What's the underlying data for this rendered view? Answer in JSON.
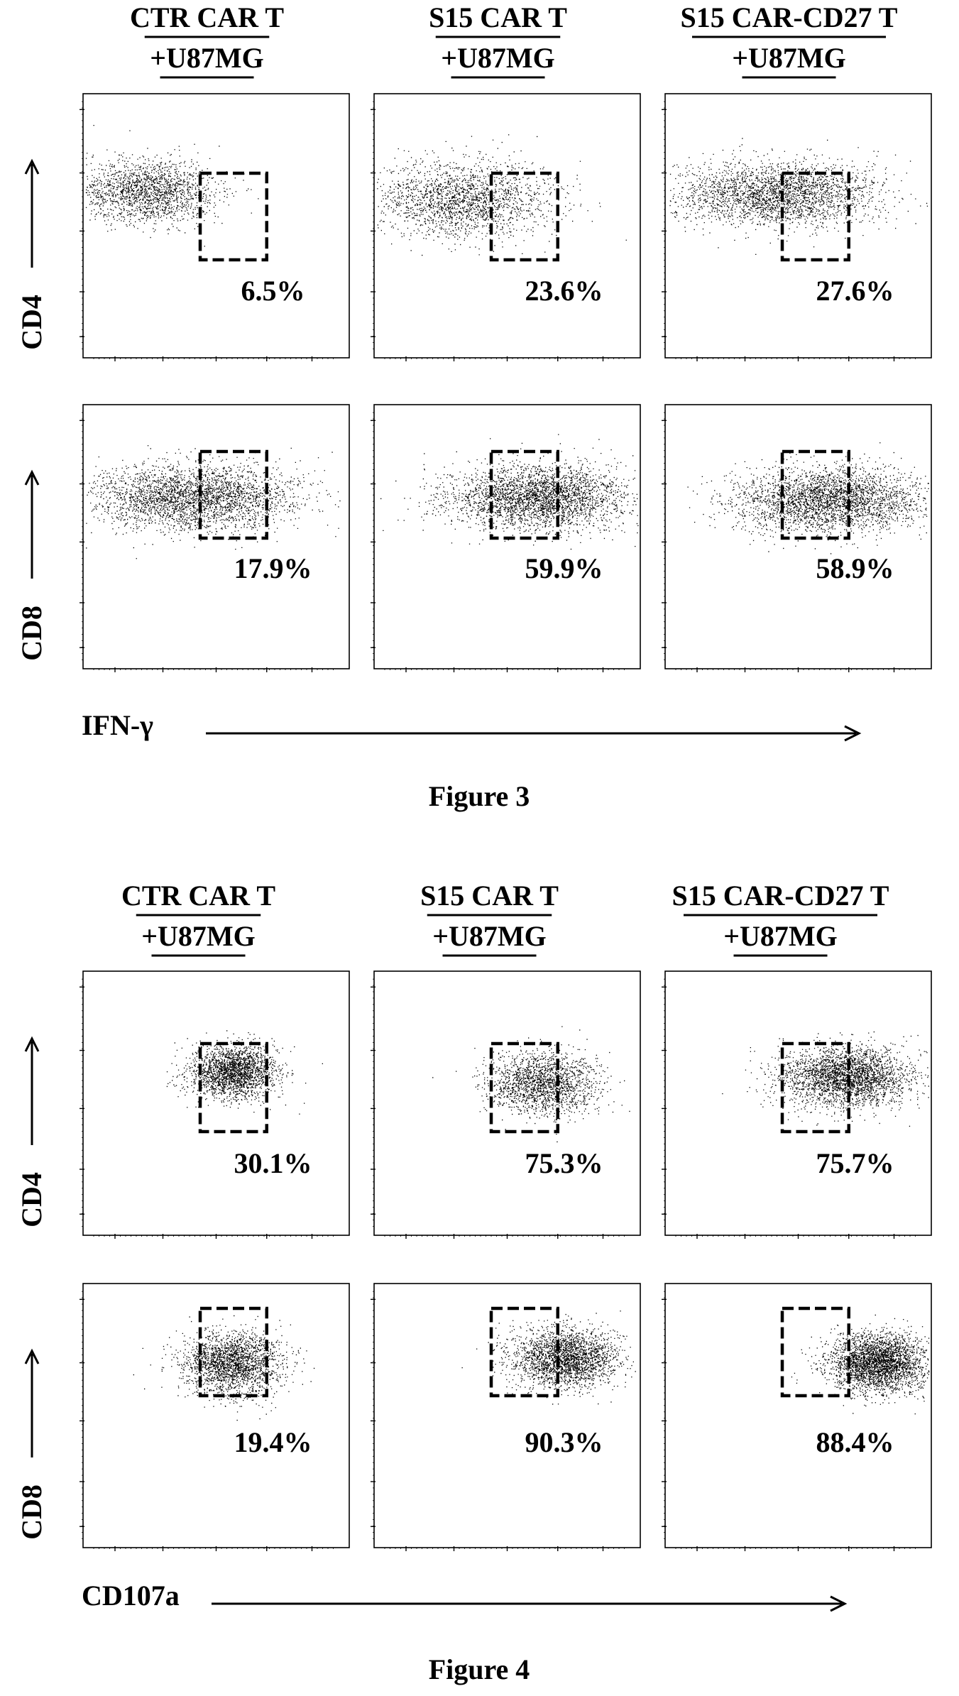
{
  "figures": [
    {
      "caption": "Figure 3",
      "x_axis_label": "IFN-γ",
      "columns": [
        {
          "line1": "CTR CAR T",
          "line2": "+U87MG"
        },
        {
          "line1": "S15 CAR T",
          "line2": "+U87MG"
        },
        {
          "line1": "S15 CAR-CD27 T",
          "line2": "+U87MG"
        }
      ],
      "rows": [
        "CD4",
        "CD8"
      ]
    },
    {
      "caption": "Figure 4",
      "x_axis_label": "CD107a",
      "columns": [
        {
          "line1": "CTR CAR T",
          "line2": "+U87MG"
        },
        {
          "line1": "S15 CAR T",
          "line2": "+U87MG"
        },
        {
          "line1": "S15 CAR-CD27 T",
          "line2": "+U87MG"
        }
      ],
      "rows": [
        "CD4",
        "CD8"
      ]
    }
  ],
  "chart_data": [
    {
      "type": "scatter",
      "title": "Figure 3",
      "xlabel": "IFN-γ",
      "panels": [
        {
          "row": "CD4",
          "column": "CTR CAR T +U87MG",
          "gate_percent": "6.5%",
          "population": {
            "center": [
              0.24,
              0.37
            ],
            "spread": [
              0.13,
              0.06
            ],
            "points": 1800
          }
        },
        {
          "row": "CD4",
          "column": "S15 CAR T +U87MG",
          "gate_percent": "23.6%",
          "population": {
            "center": [
              0.33,
              0.4
            ],
            "spread": [
              0.17,
              0.07
            ],
            "points": 2000
          }
        },
        {
          "row": "CD4",
          "column": "S15 CAR-CD27 T +U87MG",
          "gate_percent": "27.6%",
          "population": {
            "center": [
              0.42,
              0.38
            ],
            "spread": [
              0.19,
              0.06
            ],
            "points": 2600
          }
        },
        {
          "row": "CD8",
          "column": "CTR CAR T +U87MG",
          "gate_percent": "17.9%",
          "population": {
            "center": [
              0.42,
              0.35
            ],
            "spread": [
              0.19,
              0.06
            ],
            "points": 3000
          }
        },
        {
          "row": "CD8",
          "column": "S15 CAR T +U87MG",
          "gate_percent": "59.9%",
          "population": {
            "center": [
              0.62,
              0.35
            ],
            "spread": [
              0.17,
              0.06
            ],
            "points": 3000
          }
        },
        {
          "row": "CD8",
          "column": "S15 CAR-CD27 T +U87MG",
          "gate_percent": "58.9%",
          "population": {
            "center": [
              0.62,
              0.36
            ],
            "spread": [
              0.18,
              0.06
            ],
            "points": 3000
          }
        }
      ]
    },
    {
      "type": "scatter",
      "title": "Figure 4",
      "xlabel": "CD107a",
      "panels": [
        {
          "row": "CD4",
          "column": "CTR CAR T +U87MG",
          "gate_percent": "30.1%",
          "population": {
            "center": [
              0.56,
              0.38
            ],
            "spread": [
              0.08,
              0.05
            ],
            "points": 2200
          }
        },
        {
          "row": "CD4",
          "column": "S15 CAR T +U87MG",
          "gate_percent": "75.3%",
          "population": {
            "center": [
              0.63,
              0.42
            ],
            "spread": [
              0.1,
              0.06
            ],
            "points": 1800
          }
        },
        {
          "row": "CD4",
          "column": "S15 CAR-CD27 T +U87MG",
          "gate_percent": "75.7%",
          "population": {
            "center": [
              0.68,
              0.4
            ],
            "spread": [
              0.12,
              0.055
            ],
            "points": 2800
          }
        },
        {
          "row": "CD8",
          "column": "CTR CAR T +U87MG",
          "gate_percent": "19.4%",
          "population": {
            "center": [
              0.56,
              0.3
            ],
            "spread": [
              0.09,
              0.06
            ],
            "points": 2200
          }
        },
        {
          "row": "CD8",
          "column": "S15 CAR T +U87MG",
          "gate_percent": "90.3%",
          "population": {
            "center": [
              0.72,
              0.28
            ],
            "spread": [
              0.1,
              0.055
            ],
            "points": 2400
          }
        },
        {
          "row": "CD8",
          "column": "S15 CAR-CD27 T +U87MG",
          "gate_percent": "88.4%",
          "population": {
            "center": [
              0.8,
              0.3
            ],
            "spread": [
              0.09,
              0.055
            ],
            "points": 3000
          }
        }
      ]
    }
  ]
}
